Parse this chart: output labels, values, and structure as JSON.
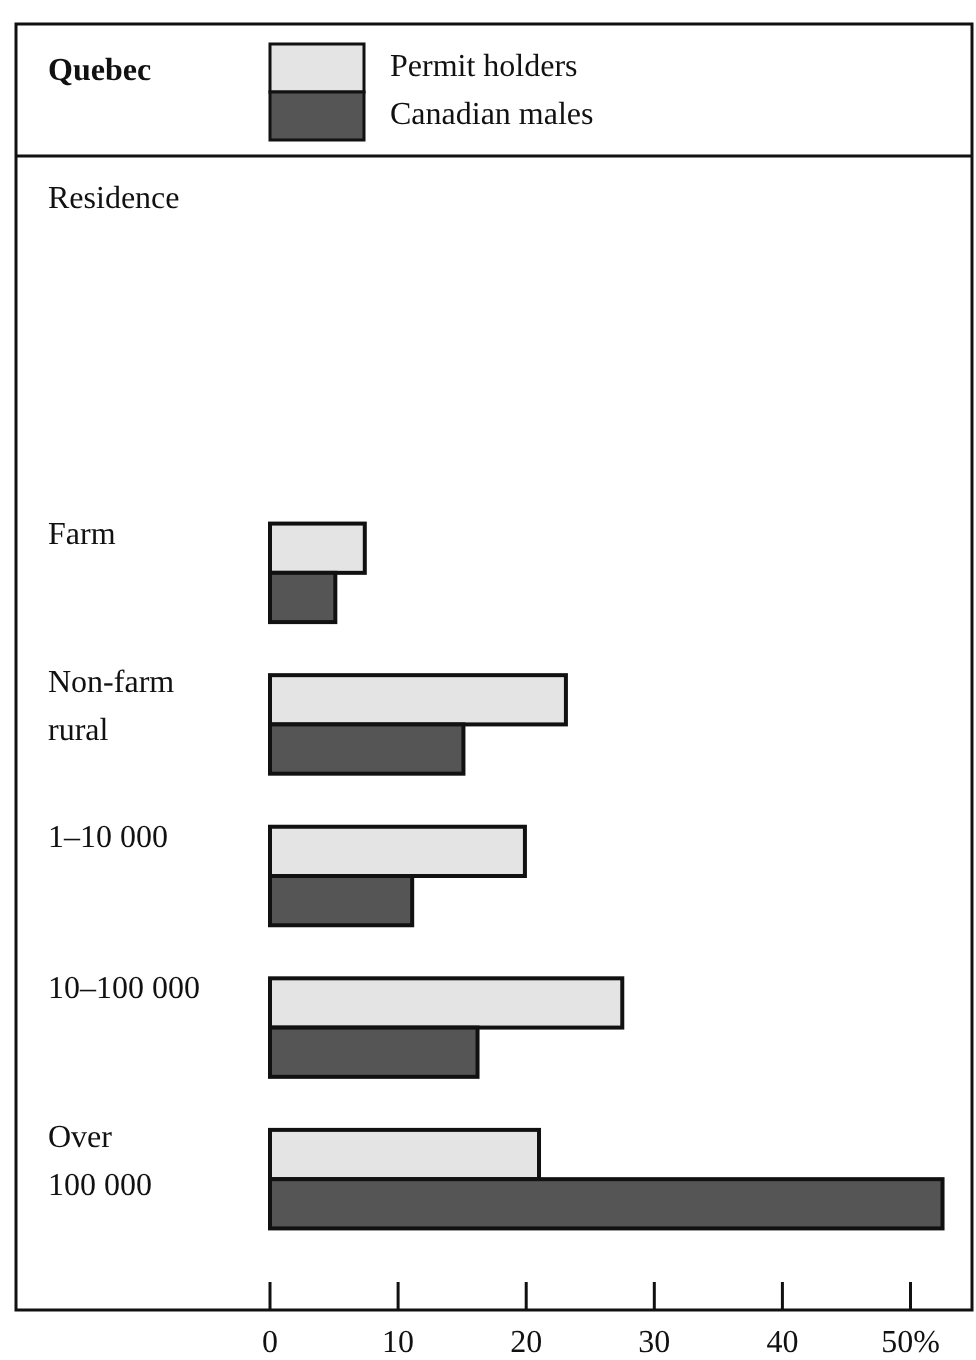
{
  "chart_data": {
    "type": "bar",
    "orientation": "horizontal",
    "title": "Quebec",
    "annotations": [
      "Residence"
    ],
    "categories": [
      "Farm",
      "Non-farm rural",
      "1–10 000",
      "10–100 000",
      "Over 100 000"
    ],
    "series": [
      {
        "name": "Permit holders",
        "color": "#e4e4e4",
        "values": [
          7.4,
          23.1,
          19.9,
          27.5,
          21.0
        ]
      },
      {
        "name": "Canadian males",
        "color": "#555555",
        "values": [
          5.1,
          15.1,
          11.1,
          16.2,
          52.5
        ]
      }
    ],
    "xlim": [
      0,
      54.8
    ],
    "xticks": [
      0,
      10,
      20,
      30,
      40,
      {
        "value": 50,
        "label": "50%"
      }
    ],
    "legend": "top",
    "grid": false
  }
}
